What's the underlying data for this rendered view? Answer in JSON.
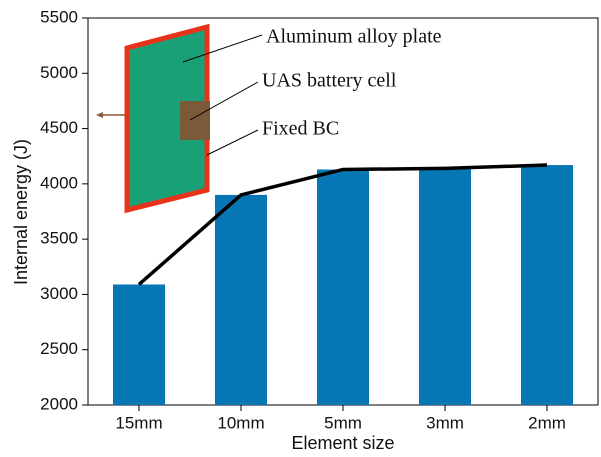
{
  "chart_data": {
    "type": "bar",
    "categories": [
      "15mm",
      "10mm",
      "5mm",
      "3mm",
      "2mm"
    ],
    "values": [
      3090,
      3900,
      4130,
      4140,
      4170
    ],
    "color": "#0776b5",
    "line": true,
    "line_color": "#000000",
    "ylim": [
      2000,
      5500
    ],
    "yticks": [
      2000,
      2500,
      3000,
      3500,
      4000,
      4500,
      5000,
      5500
    ],
    "xlabel": "Element size",
    "ylabel": "Internal energy (J)",
    "annotations": [
      "Aluminum alloy plate",
      "UAS battery cell",
      "Fixed BC"
    ]
  }
}
